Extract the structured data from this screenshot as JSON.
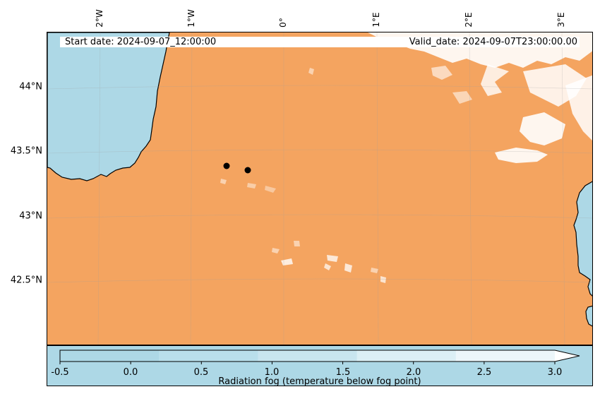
{
  "header": {
    "start_date": "Start date: 2024-09-07_12:00:00",
    "valid_date": "Valid_date: 2024-09-07T23:00:00.00"
  },
  "map": {
    "longitude_ticks": [
      "2°W",
      "1°W",
      "0°",
      "1°E",
      "2°E",
      "3°E"
    ],
    "latitude_ticks": [
      "44°N",
      "43.5°N",
      "43°N",
      "42.5°N"
    ],
    "land_color": "#f4a460",
    "sea_color": "#add8e6",
    "station_markers": 2
  },
  "colorbar": {
    "ticks": [
      "-0.5",
      "0.0",
      "0.5",
      "1.0",
      "1.5",
      "2.0",
      "2.5",
      "3.0"
    ],
    "label": "Radiation fog (temperature below fog point)",
    "extend": "max",
    "colors": [
      "#add8e6",
      "#b9dfeb",
      "#c8e5ef",
      "#dbeff5",
      "#ecf6fa",
      "#ffffff"
    ]
  }
}
